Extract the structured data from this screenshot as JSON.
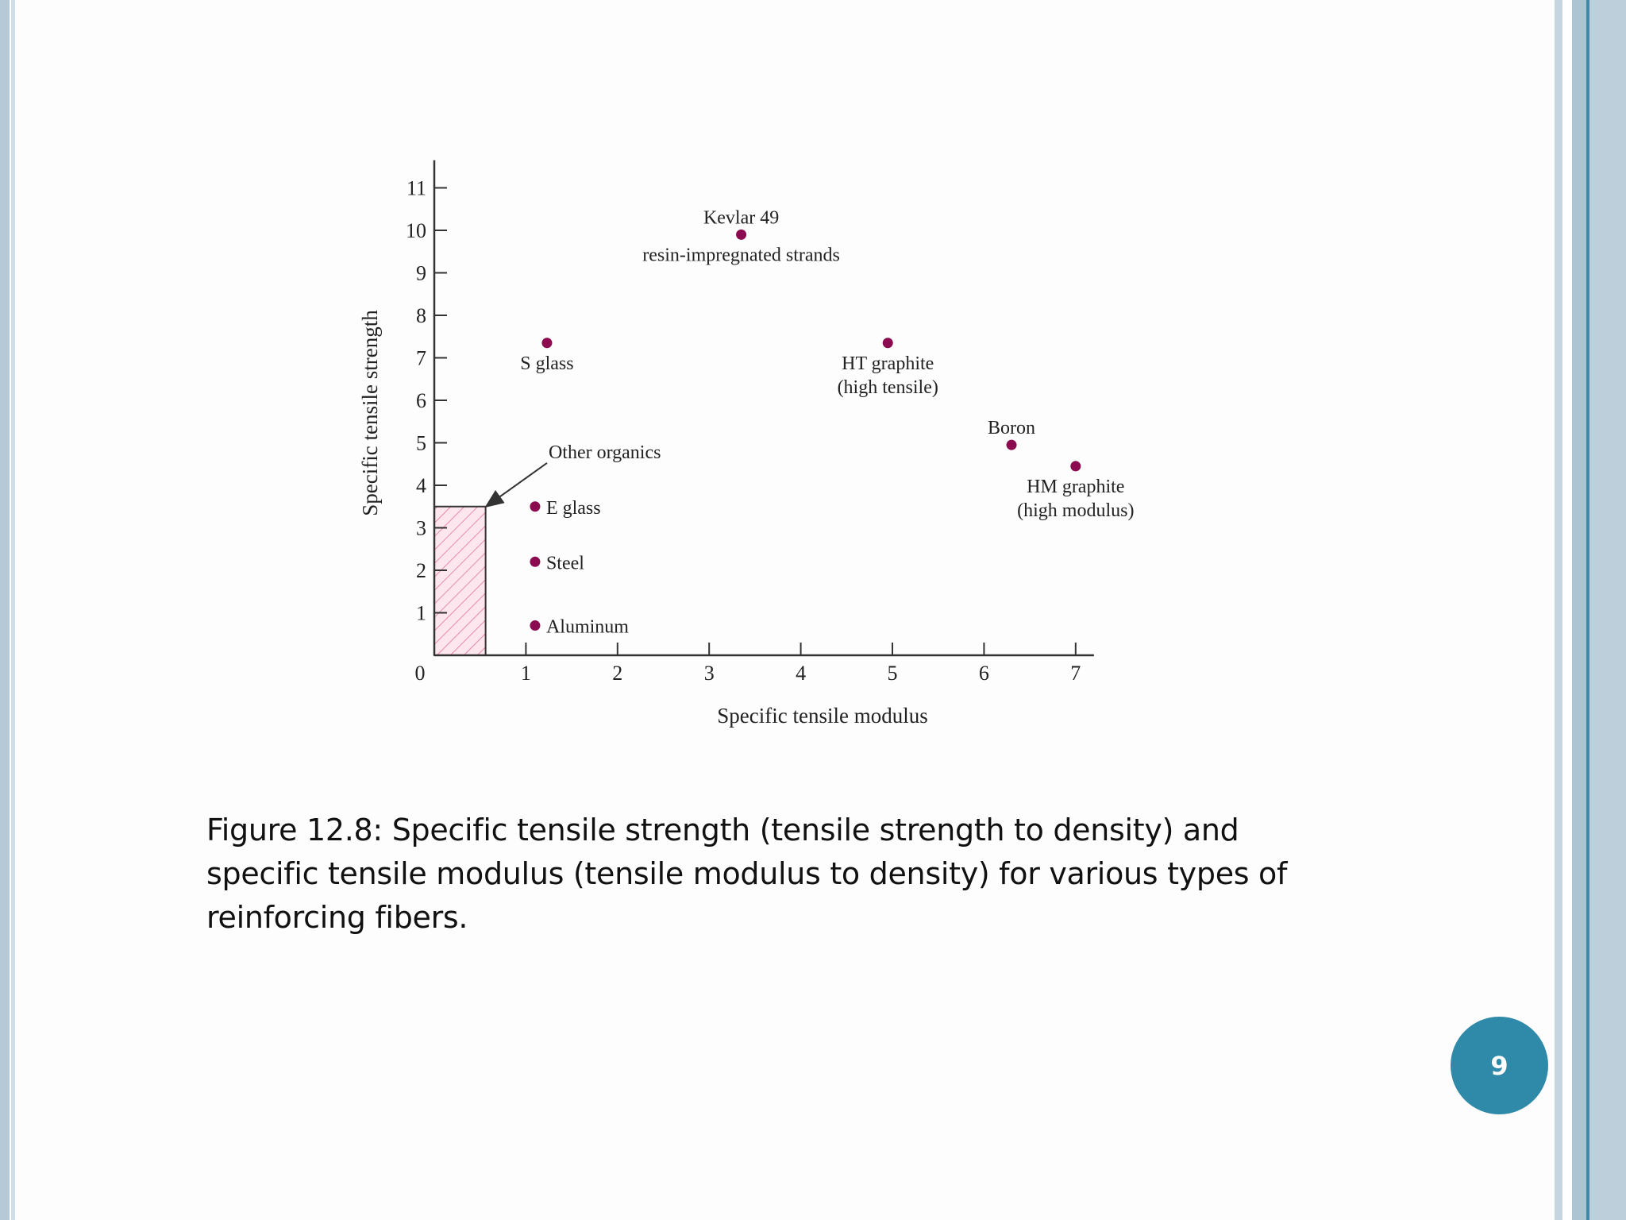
{
  "colors": {
    "point": "#8b0a50",
    "axis": "#333333",
    "hatch_fill": "#fde6ee",
    "hatch_line": "#e88aa8",
    "badge": "#2f89a9"
  },
  "chart_data": {
    "type": "scatter",
    "xlabel": "Specific tensile modulus",
    "ylabel": "Specific tensile strength",
    "xlim": [
      0,
      7.2
    ],
    "ylim": [
      0,
      11.5
    ],
    "x_ticks": [
      "0",
      "1",
      "2",
      "3",
      "4",
      "5",
      "6",
      "7"
    ],
    "y_ticks": [
      "1",
      "2",
      "3",
      "4",
      "5",
      "6",
      "7",
      "8",
      "9",
      "10",
      "11"
    ],
    "grid": false,
    "region": {
      "name": "Other organics",
      "x": [
        0,
        0.56
      ],
      "y": [
        0,
        3.5
      ]
    },
    "points": [
      {
        "x": 3.35,
        "y": 9.9,
        "lines": [
          "Kevlar 49",
          "resin-impregnated strands"
        ]
      },
      {
        "x": 1.23,
        "y": 7.35,
        "lines": [
          "S glass"
        ]
      },
      {
        "x": 4.95,
        "y": 7.35,
        "lines": [
          "HT graphite",
          "(high tensile)"
        ]
      },
      {
        "x": 6.3,
        "y": 4.95,
        "lines": [
          "Boron"
        ]
      },
      {
        "x": 7.0,
        "y": 4.45,
        "lines": [
          "HM graphite",
          "(high modulus)"
        ]
      },
      {
        "x": 1.1,
        "y": 3.5,
        "lines": [
          "E glass"
        ]
      },
      {
        "x": 1.1,
        "y": 2.2,
        "lines": [
          "Steel"
        ]
      },
      {
        "x": 1.1,
        "y": 0.7,
        "lines": [
          "Aluminum"
        ]
      }
    ]
  },
  "caption": "Figure 12.8: Specific tensile strength (tensile strength to density) and specific tensile modulus (tensile modulus to density) for various types of reinforcing fibers.",
  "page_number": "9"
}
